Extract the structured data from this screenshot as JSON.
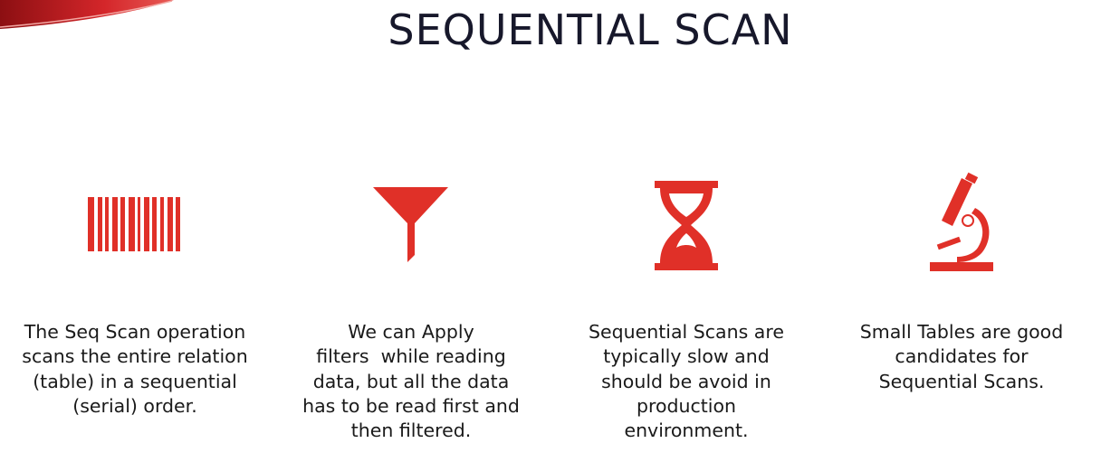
{
  "slide": {
    "title": "SEQUENTIAL SCAN",
    "accent_color": "#e03028",
    "text_color": "#17182b"
  },
  "columns": [
    {
      "icon": "barcode-icon",
      "lines": [
        "The Seq Scan operation",
        "scans the entire relation",
        "(table) in a sequential",
        "(serial) order."
      ]
    },
    {
      "icon": "funnel-icon",
      "lines": [
        "We can Apply",
        "filters  while reading",
        "data, but all the data",
        "has to be read first and",
        "then filtered."
      ]
    },
    {
      "icon": "hourglass-icon",
      "lines": [
        "Sequential Scans are",
        "typically slow and",
        "should be avoid in",
        "production",
        "environment."
      ]
    },
    {
      "icon": "microscope-icon",
      "lines": [
        "Small Tables are good",
        "candidates for",
        "Sequential Scans."
      ]
    }
  ]
}
